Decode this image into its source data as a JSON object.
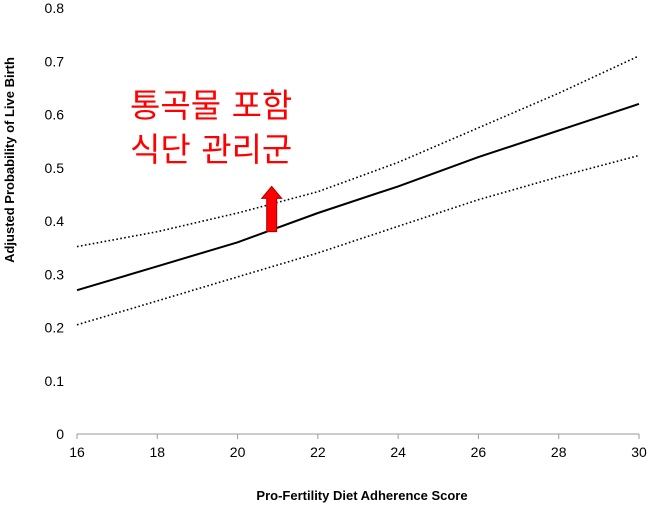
{
  "chart_data": {
    "type": "line",
    "xlabel": "Pro-Fertility Diet Adherence Score",
    "ylabel": "Adjusted Probability of Live Birth",
    "xlim": [
      16,
      30
    ],
    "ylim": [
      0,
      0.8
    ],
    "x_ticks": [
      "16",
      "18",
      "20",
      "22",
      "24",
      "26",
      "28",
      "30"
    ],
    "y_ticks": [
      "0",
      "0.1",
      "0.2",
      "0.3",
      "0.4",
      "0.5",
      "0.6",
      "0.7",
      "0.8"
    ],
    "grid": false,
    "series": [
      {
        "style": "solid",
        "x": [
          16,
          18,
          20,
          22,
          24,
          26,
          28,
          30
        ],
        "values": [
          0.27,
          0.315,
          0.36,
          0.415,
          0.465,
          0.52,
          0.57,
          0.62
        ]
      },
      {
        "style": "dotted",
        "x": [
          16,
          18,
          20,
          22,
          24,
          26,
          28,
          30
        ],
        "values": [
          0.352,
          0.38,
          0.415,
          0.455,
          0.51,
          0.575,
          0.64,
          0.71
        ]
      },
      {
        "style": "dotted",
        "x": [
          16,
          18,
          20,
          22,
          24,
          26,
          28,
          30
        ],
        "values": [
          0.205,
          0.25,
          0.295,
          0.34,
          0.39,
          0.44,
          0.483,
          0.523
        ]
      }
    ],
    "annotation": {
      "lines": [
        "통곡물 포함",
        "식단 관리군"
      ],
      "color": "#ff0000",
      "arrow_x": 20.85,
      "arrow_from": 0.38,
      "arrow_to": 0.465
    }
  }
}
